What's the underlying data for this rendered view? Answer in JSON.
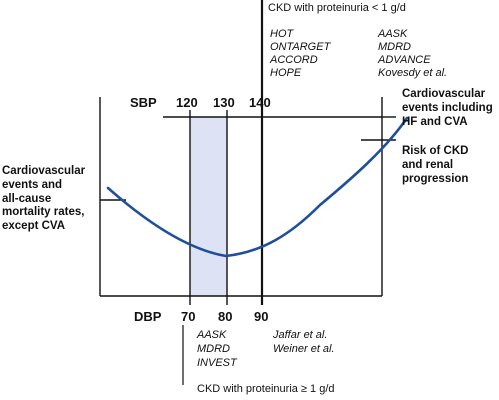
{
  "top_box": {
    "title": "CKD with proteinuria < 1 g/d",
    "studies_left": [
      "HOT",
      "ONTARGET",
      "ACCORD",
      "HOPE"
    ],
    "studies_right": [
      "AASK",
      "MDRD",
      "ADVANCE",
      "Kovesdy et al."
    ]
  },
  "bottom_box": {
    "title": "CKD with proteinuria ≥ 1 g/d",
    "studies_left": [
      "AASK",
      "MDRD",
      "INVEST"
    ],
    "studies_right": [
      "Jaffar et al.",
      "Weiner et al."
    ]
  },
  "sbp_axis": {
    "label": "SBP",
    "ticks": [
      "120",
      "130",
      "140"
    ]
  },
  "dbp_axis": {
    "label": "DBP",
    "ticks": [
      "70",
      "80",
      "90"
    ]
  },
  "annotations": {
    "left": [
      "Cardiovascular",
      "events and",
      "all-cause",
      "mortality rates,",
      "except CVA"
    ],
    "right_top": [
      "Cardiovascular",
      "events including",
      "HF and CVA"
    ],
    "right_bottom": [
      "Risk of CKD",
      "and renal",
      "progression"
    ]
  },
  "colors": {
    "curve": "#1f4f9c",
    "target_band": "#dde3f4",
    "lines": "#111111"
  }
}
